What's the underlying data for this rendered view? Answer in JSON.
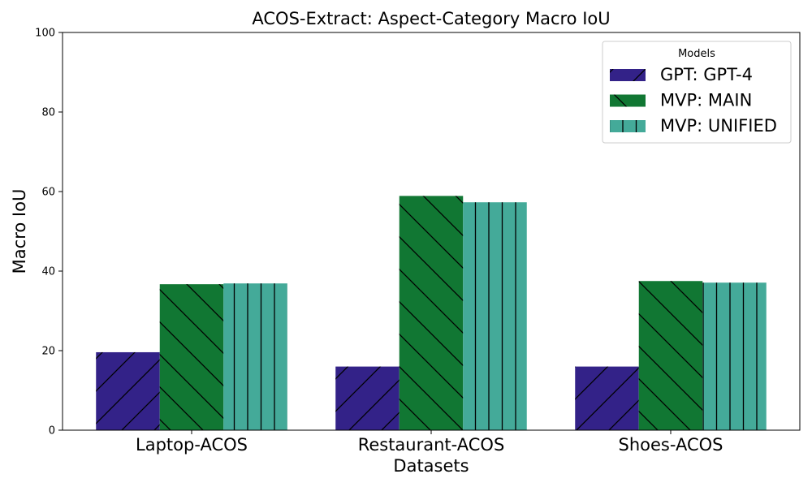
{
  "chart_data": {
    "type": "bar",
    "title": "ACOS-Extract: Aspect-Category Macro IoU",
    "xlabel": "Datasets",
    "ylabel": "Macro IoU",
    "ylim": [
      0,
      100
    ],
    "yticks": [
      0,
      20,
      40,
      60,
      80,
      100
    ],
    "categories": [
      "Laptop-ACOS",
      "Restaurant-ACOS",
      "Shoes-ACOS"
    ],
    "series": [
      {
        "name": "GPT: GPT-4",
        "values": [
          19.6,
          16.0,
          16.0
        ],
        "color": "#332288",
        "hatch": "forward-slash"
      },
      {
        "name": "MVP: MAIN",
        "values": [
          36.7,
          58.9,
          37.5
        ],
        "color": "#117733",
        "hatch": "back-slash"
      },
      {
        "name": "MVP: UNIFIED",
        "values": [
          36.9,
          57.3,
          37.1
        ],
        "color": "#44AA99",
        "hatch": "vertical"
      }
    ],
    "legend": {
      "title": "Models",
      "placement": "top-right"
    },
    "grid": false
  }
}
